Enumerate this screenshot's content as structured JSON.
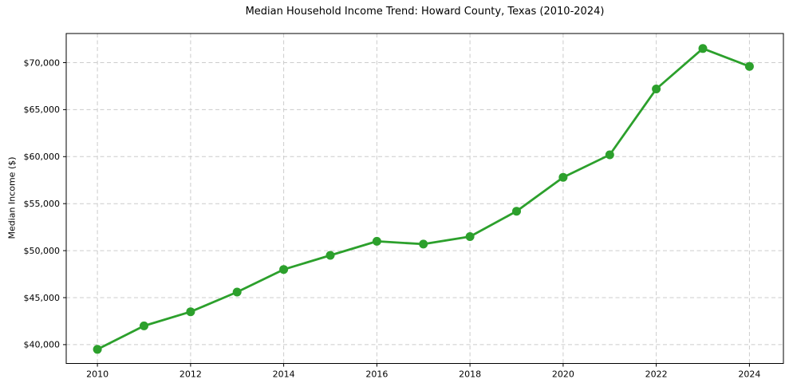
{
  "chart_data": {
    "type": "line",
    "title": "Median Household Income Trend: Howard County, Texas (2010-2024)",
    "xlabel": "",
    "ylabel": "Median Income ($)",
    "x": [
      2010,
      2011,
      2012,
      2013,
      2014,
      2015,
      2016,
      2017,
      2018,
      2019,
      2020,
      2021,
      2022,
      2023,
      2024
    ],
    "values": [
      39500,
      42000,
      43500,
      45600,
      48000,
      49500,
      51000,
      50700,
      51500,
      54200,
      57800,
      60200,
      67200,
      71500,
      69600
    ],
    "series_name": "Median household income",
    "xlim": [
      2009.33,
      2024.73
    ],
    "ylim": [
      38000,
      73100
    ],
    "xticks": [
      2010,
      2012,
      2014,
      2016,
      2018,
      2020,
      2022,
      2024
    ],
    "xtick_labels": [
      "2010",
      "2012",
      "2014",
      "2016",
      "2018",
      "2020",
      "2022",
      "2024"
    ],
    "yticks": [
      40000,
      45000,
      50000,
      55000,
      60000,
      65000,
      70000
    ],
    "ytick_labels": [
      "$40,000",
      "$45,000",
      "$50,000",
      "$55,000",
      "$60,000",
      "$65,000",
      "$70,000"
    ],
    "grid": true,
    "grid_style": "dashed",
    "legend": null,
    "marker": "circle",
    "colors": {
      "line": "#2ca02c",
      "marker": "#2ca02c",
      "grid": "#cccccc",
      "spine": "#000000",
      "text": "#000000",
      "background": "#ffffff"
    }
  }
}
